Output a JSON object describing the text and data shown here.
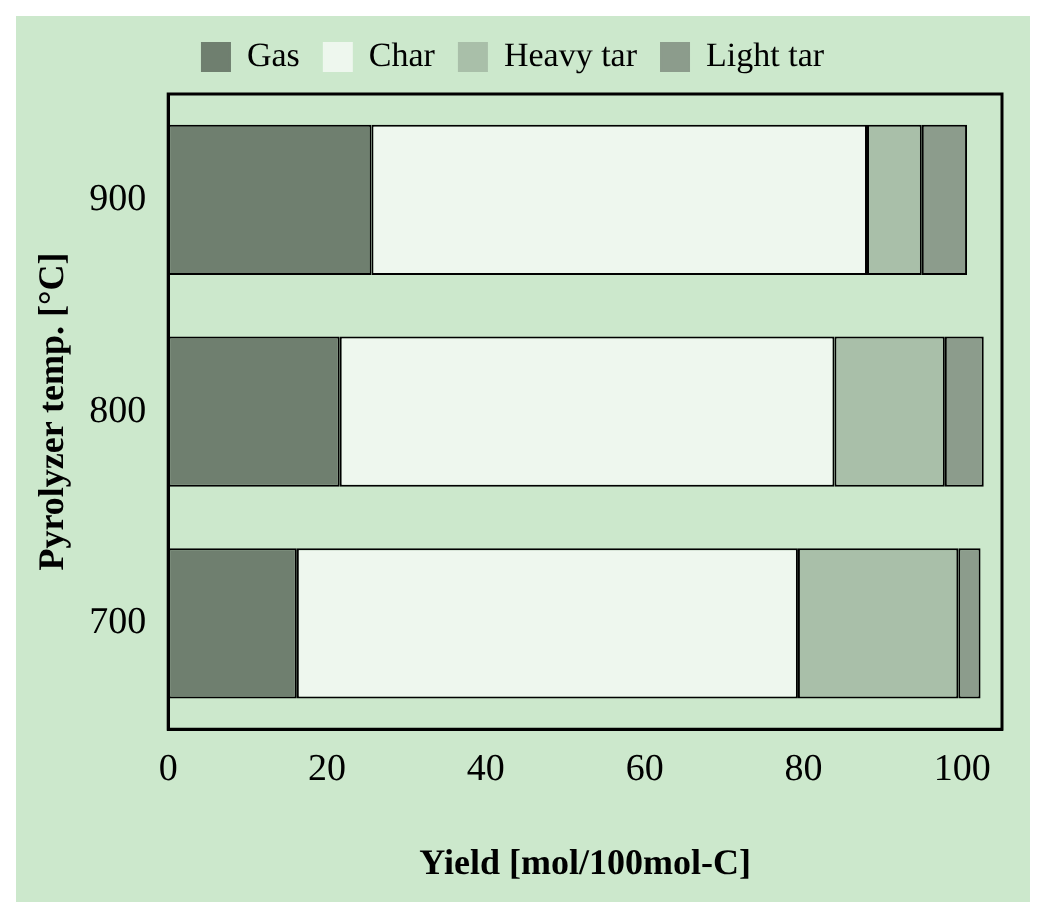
{
  "chart_data": {
    "type": "bar",
    "orientation": "horizontal",
    "stacked": true,
    "categories": [
      "900",
      "800",
      "700"
    ],
    "series": [
      {
        "name": "Gas",
        "color": "#6f7f6f",
        "values": [
          25.6,
          21.6,
          16.2
        ]
      },
      {
        "name": "Char",
        "color": "#eef7ee",
        "values": [
          62.4,
          62.3,
          63.1
        ]
      },
      {
        "name": "Heavy tar",
        "color": "#a9bfa9",
        "values": [
          6.9,
          13.9,
          20.2
        ]
      },
      {
        "name": "Light tar",
        "color": "#8c9c8c",
        "values": [
          5.7,
          4.9,
          2.8
        ]
      }
    ],
    "xlim": [
      0,
      105
    ],
    "xticks": [
      0,
      20,
      40,
      60,
      80,
      100
    ],
    "xlabel": "Yield [mol/100mol-C]",
    "ylabel": "Pyrolyzer temp. [°C]",
    "legend": "top",
    "grid": false
  }
}
